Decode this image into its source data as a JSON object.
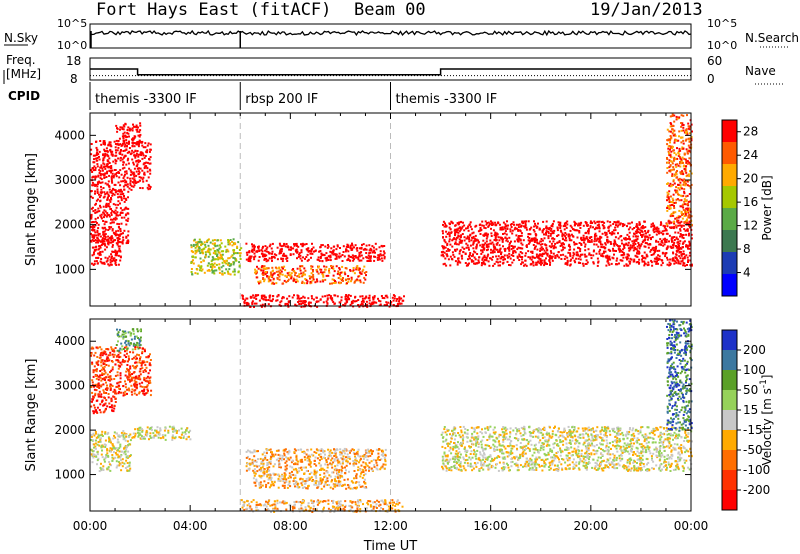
{
  "header": {
    "station": "Fort Hays East (fitACF)",
    "beam": "Beam 00",
    "date": "19/Jan/2013"
  },
  "top_strip": {
    "left_label": "N.Sky",
    "left_ticks": [
      "10^5",
      "10^0"
    ],
    "right_ticks": [
      "10^5",
      "10^0"
    ],
    "right_label": "N.Search"
  },
  "freq_strip": {
    "left_label_1": "Freq.",
    "left_label_2": "[MHz]",
    "left_ticks": [
      "18",
      "8"
    ],
    "right_ticks": [
      "60",
      "0"
    ],
    "right_label": "Nave",
    "cpid_label": "CPID",
    "cpid_segments": [
      {
        "label": "themis -3300 IF",
        "start_h": 0.0
      },
      {
        "label": "rbsp 200 IF",
        "start_h": 6.0
      },
      {
        "label": "themis -3300 IF",
        "start_h": 12.0
      }
    ],
    "freq_steps": [
      {
        "h0": 0.0,
        "h1": 1.9,
        "value": 13
      },
      {
        "h0": 1.9,
        "h1": 14.0,
        "value": 10.4
      },
      {
        "h0": 14.0,
        "h1": 24.0,
        "value": 13
      }
    ],
    "nave_level": 12
  },
  "chart_data": [
    {
      "type": "heatmap",
      "name": "power",
      "xlabel": "Time UT",
      "ylabel": "Slant Range [km]",
      "xlim": [
        0,
        24
      ],
      "ylim": [
        180,
        4500
      ],
      "xticks": [
        "00:00",
        "04:00",
        "08:00",
        "12:00",
        "16:00",
        "20:00",
        "00:00"
      ],
      "yticks": [
        1000,
        2000,
        3000,
        4000
      ],
      "colorbar": {
        "label": "Power [dB]",
        "ticks": [
          4,
          8,
          12,
          16,
          20,
          24,
          28
        ],
        "range": [
          0,
          30
        ],
        "colors": [
          "#0000ff",
          "#1c3cb4",
          "#3c7850",
          "#5aaa46",
          "#a5c800",
          "#ffaa00",
          "#ff5a00",
          "#ff0000"
        ]
      },
      "regions": [
        {
          "h0": 0.0,
          "h1": 1.2,
          "r0": 1100,
          "r1": 1800,
          "level": 20
        },
        {
          "h0": 0.0,
          "h1": 1.5,
          "r0": 1600,
          "r1": 2800,
          "level": 12
        },
        {
          "h0": 0.0,
          "h1": 2.4,
          "r0": 2800,
          "r1": 3900,
          "level": 10
        },
        {
          "h0": 1.0,
          "h1": 2.0,
          "r0": 3800,
          "r1": 4300,
          "level": 8
        },
        {
          "h0": 4.0,
          "h1": 6.0,
          "r0": 900,
          "r1": 1700,
          "level": 4
        },
        {
          "h0": 6.2,
          "h1": 11.8,
          "r0": 1200,
          "r1": 1600,
          "level": 8
        },
        {
          "h0": 6.5,
          "h1": 11.0,
          "r0": 700,
          "r1": 1100,
          "level": 6
        },
        {
          "h0": 6.0,
          "h1": 12.5,
          "r0": 180,
          "r1": 450,
          "level": 10
        },
        {
          "h0": 14.0,
          "h1": 24.0,
          "r0": 1100,
          "r1": 2100,
          "level": 18
        },
        {
          "h0": 23.0,
          "h1": 24.0,
          "r0": 2000,
          "r1": 4500,
          "level": 6
        }
      ]
    },
    {
      "type": "heatmap",
      "name": "velocity",
      "xlabel": "Time UT",
      "ylabel": "Slant Range [km]",
      "xlim": [
        0,
        24
      ],
      "ylim": [
        180,
        4500
      ],
      "xticks": [
        "00:00",
        "04:00",
        "08:00",
        "12:00",
        "16:00",
        "20:00",
        "00:00"
      ],
      "yticks": [
        1000,
        2000,
        3000,
        4000
      ],
      "colorbar": {
        "label": "Velocity [m s",
        "label_sup": "-1",
        "label_end": "]",
        "ticks": [
          "200",
          "100",
          "50",
          "15",
          "-15",
          "-50",
          "-100",
          "-200"
        ],
        "colors": [
          "#1e32c8",
          "#3c78a0",
          "#5aa028",
          "#96d25a",
          "#c8c8c8",
          "#ffaa00",
          "#ff6e00",
          "#ff3200",
          "#ff0000"
        ]
      },
      "regions": [
        {
          "h0": 0.0,
          "h1": 1.6,
          "r0": 1100,
          "r1": 2000,
          "level": 4
        },
        {
          "h0": 1.6,
          "h1": 4.0,
          "r0": 1800,
          "r1": 2100,
          "level": 4
        },
        {
          "h0": 0.0,
          "h1": 1.0,
          "r0": 2400,
          "r1": 2800,
          "level": 8
        },
        {
          "h0": 0.0,
          "h1": 2.4,
          "r0": 2800,
          "r1": 3900,
          "level": 7
        },
        {
          "h0": 1.0,
          "h1": 2.0,
          "r0": 3800,
          "r1": 4300,
          "level": 2
        },
        {
          "h0": 6.2,
          "h1": 11.8,
          "r0": 1100,
          "r1": 1600,
          "level": 5
        },
        {
          "h0": 6.5,
          "h1": 11.0,
          "r0": 700,
          "r1": 1100,
          "level": 5
        },
        {
          "h0": 6.0,
          "h1": 12.5,
          "r0": 180,
          "r1": 450,
          "level": 5
        },
        {
          "h0": 14.0,
          "h1": 24.0,
          "r0": 1100,
          "r1": 2100,
          "level": 4
        },
        {
          "h0": 23.0,
          "h1": 24.0,
          "r0": 2000,
          "r1": 4500,
          "level": 1
        }
      ]
    }
  ]
}
